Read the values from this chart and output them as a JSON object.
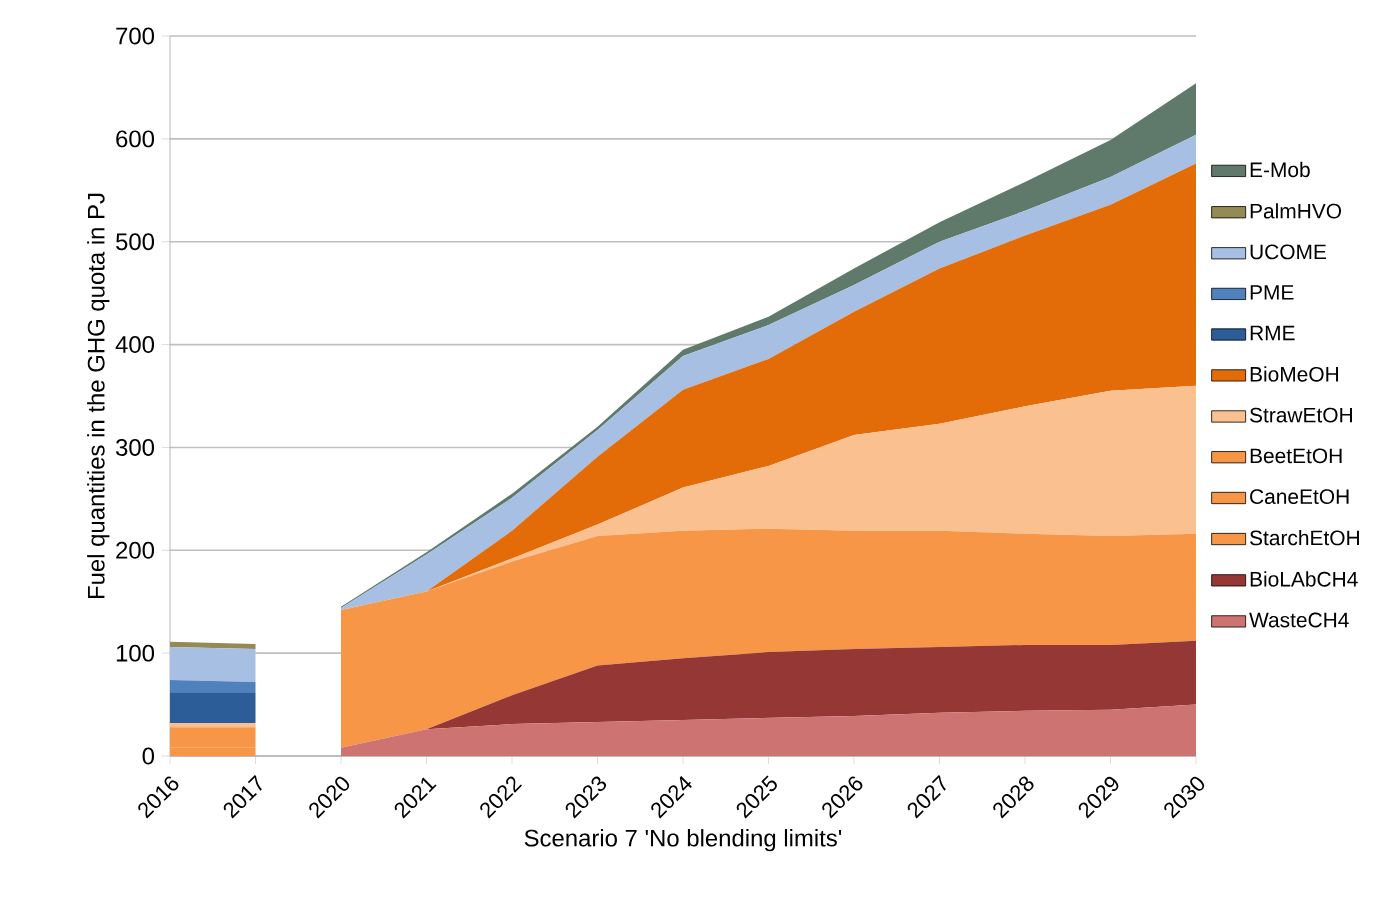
{
  "chart_data": [
    {
      "type": "area",
      "stacked": true,
      "ylabel": "Fuel quantities in the GHG quota in PJ",
      "categories": [
        "2016",
        "2017"
      ],
      "ylim": [
        0,
        700
      ],
      "yticks": [
        0,
        100,
        200,
        300,
        400,
        500,
        600,
        700
      ],
      "grid": "y",
      "series": [
        {
          "color": "#f79646",
          "values": [
            8,
            8
          ]
        },
        {
          "color": "#f79646",
          "values": [
            20,
            20
          ]
        },
        {
          "color": "#fac090",
          "values": [
            4,
            4
          ]
        },
        {
          "color": "#2c5d99",
          "values": [
            30,
            30
          ]
        },
        {
          "color": "#4f81bd",
          "values": [
            12,
            10
          ]
        },
        {
          "color": "#a7bfe2",
          "values": [
            32,
            32
          ]
        },
        {
          "color": "#948a54",
          "values": [
            5,
            5
          ]
        }
      ]
    },
    {
      "type": "area",
      "stacked": true,
      "xlabel": "Scenario 7 'No blending limits'",
      "categories": [
        "2020",
        "2021",
        "2022",
        "2023",
        "2024",
        "2025",
        "2026",
        "2027",
        "2028",
        "2029",
        "2030"
      ],
      "ylim": [
        0,
        700
      ],
      "yticks": [
        0,
        100,
        200,
        300,
        400,
        500,
        600,
        700
      ],
      "grid": "y",
      "legend": "right",
      "tick_labels": "x",
      "series": [
        {
          "name": "WasteCH4",
          "color": "#cd7371",
          "values": [
            8,
            26,
            31,
            33,
            35,
            37,
            39,
            42,
            44,
            45,
            50
          ]
        },
        {
          "name": "BioLAbCH4",
          "color": "#953735",
          "values": [
            0,
            0,
            28,
            55,
            60,
            64,
            65,
            64,
            64,
            63,
            62
          ]
        },
        {
          "name": "StarchEtOH",
          "color": "#f79646",
          "values": [
            134,
            134,
            130,
            126,
            124,
            120,
            115,
            113,
            108,
            106,
            104
          ]
        },
        {
          "name": "CaneEtOH",
          "color": "#f79646",
          "values": [
            null,
            null,
            null,
            null,
            null,
            null,
            null,
            null,
            null,
            null,
            null
          ]
        },
        {
          "name": "BeetEtOH",
          "color": "#f79646",
          "values": [
            null,
            null,
            null,
            null,
            null,
            null,
            null,
            null,
            null,
            null,
            null
          ]
        },
        {
          "name": "StrawEtOH",
          "color": "#fac090",
          "values": [
            0,
            0,
            3,
            11,
            42,
            61,
            93,
            104,
            124,
            141,
            144
          ]
        },
        {
          "name": "BioMeOH",
          "color": "#e36c09",
          "values": [
            0,
            0,
            27,
            66,
            95,
            104,
            120,
            151,
            166,
            181,
            216
          ]
        },
        {
          "name": "RME",
          "color": "#2c5d99",
          "values": [
            null,
            null,
            null,
            null,
            null,
            null,
            null,
            null,
            null,
            null,
            null
          ]
        },
        {
          "name": "PME",
          "color": "#4f81bd",
          "values": [
            null,
            null,
            null,
            null,
            null,
            null,
            null,
            null,
            null,
            null,
            null
          ]
        },
        {
          "name": "UCOME",
          "color": "#a7bfe2",
          "values": [
            2,
            36,
            32,
            26,
            33,
            33,
            26,
            26,
            24,
            27,
            28
          ]
        },
        {
          "name": "PalmHVO",
          "color": "#948a54",
          "values": [
            null,
            null,
            null,
            null,
            null,
            null,
            null,
            null,
            null,
            null,
            null
          ]
        },
        {
          "name": "E-Mob",
          "color": "#5f7a6a",
          "values": [
            1,
            2,
            4,
            3,
            6,
            8,
            16,
            19,
            28,
            36,
            50
          ]
        }
      ]
    }
  ]
}
